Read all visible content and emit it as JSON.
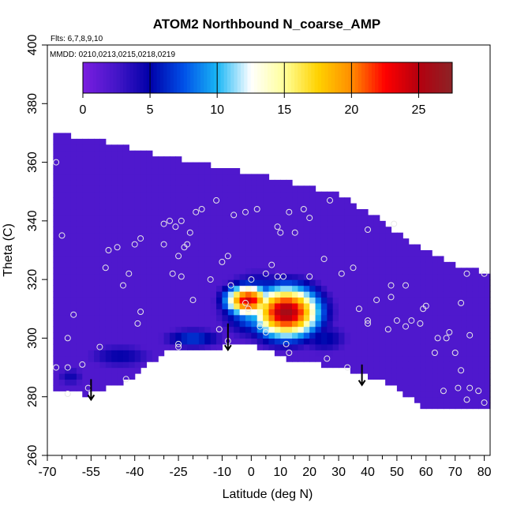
{
  "chart_data": {
    "type": "heatmap",
    "title": "ATOM2 Northbound N_coarse_AMP",
    "annotations": [
      "Flts: 6,7,8,9,10",
      "MMDD: 0210,0213,0215,0218,0219"
    ],
    "xlabel": "Latitude (deg N)",
    "ylabel": "Theta (C)",
    "xlim": [
      -70,
      82
    ],
    "ylim": [
      260,
      400
    ],
    "x_ticks": [
      "-70",
      "-55",
      "-40",
      "-25",
      "-10",
      "0",
      "10",
      "20",
      "30",
      "40",
      "50",
      "60",
      "70",
      "80"
    ],
    "x_tick_values": [
      -70,
      -55,
      -40,
      -25,
      -10,
      0,
      10,
      20,
      30,
      40,
      50,
      60,
      70,
      80
    ],
    "x_minor_ticks": [
      -65,
      -60,
      -50,
      -45,
      -35,
      -30,
      -20,
      -15,
      -5,
      5,
      15,
      25,
      35,
      45,
      55,
      65,
      75
    ],
    "y_ticks": [
      "260",
      "280",
      "300",
      "320",
      "340",
      "360",
      "380",
      "400"
    ],
    "y_tick_values": [
      260,
      280,
      300,
      320,
      340,
      360,
      380,
      400
    ],
    "colorbar": {
      "range": [
        0,
        27.5
      ],
      "ticks": [
        "0",
        "5",
        "10",
        "15",
        "20",
        "25"
      ],
      "tick_values": [
        0,
        5,
        10,
        15,
        20,
        25
      ],
      "colors": [
        "#7b1ee0",
        "#4416c8",
        "#0000a8",
        "#0050e8",
        "#19b6f5",
        "#ffffff",
        "#ffff9a",
        "#ffd200",
        "#ff8c00",
        "#ff0000",
        "#b4000f",
        "#8c2326"
      ]
    },
    "coverage": {
      "lower_boundary": [
        [
          -68,
          282
        ],
        [
          -57,
          281
        ],
        [
          -42,
          286
        ],
        [
          -30,
          295
        ],
        [
          -10,
          297
        ],
        [
          0,
          298
        ],
        [
          12,
          293
        ],
        [
          25,
          291
        ],
        [
          38,
          288
        ],
        [
          48,
          284
        ],
        [
          58,
          277
        ],
        [
          80,
          277
        ]
      ],
      "upper_boundary": [
        [
          -68,
          370
        ],
        [
          -55,
          368
        ],
        [
          -30,
          362
        ],
        [
          -10,
          358
        ],
        [
          10,
          354
        ],
        [
          30,
          349
        ],
        [
          45,
          340
        ],
        [
          55,
          332
        ],
        [
          70,
          325
        ],
        [
          81,
          322
        ]
      ],
      "background_value": 2
    },
    "features": [
      {
        "type": "blob",
        "x": 12,
        "y": 309,
        "rx": 13,
        "ry": 10,
        "peak": 26
      },
      {
        "type": "blob",
        "x": -1,
        "y": 313,
        "rx": 9,
        "ry": 6,
        "peak": 24
      },
      {
        "type": "blob",
        "x": 3,
        "y": 311,
        "rx": 14,
        "ry": 11,
        "peak": 12
      },
      {
        "type": "blob",
        "x": -20,
        "y": 300,
        "rx": 12,
        "ry": 4,
        "peak": 7
      },
      {
        "type": "blob",
        "x": 25,
        "y": 300,
        "rx": 10,
        "ry": 6,
        "peak": 5.5
      },
      {
        "type": "blob",
        "x": -45,
        "y": 294,
        "rx": 14,
        "ry": 5,
        "peak": 5
      },
      {
        "type": "blob",
        "x": -62,
        "y": 287,
        "rx": 6,
        "ry": 4,
        "peak": 4.5
      }
    ],
    "sample_points": [
      [
        -67,
        360
      ],
      [
        -65,
        335
      ],
      [
        -61,
        308
      ],
      [
        -63,
        300
      ],
      [
        -67,
        290
      ],
      [
        -63,
        290
      ],
      [
        -58,
        291
      ],
      [
        -56,
        283
      ],
      [
        -63,
        281
      ],
      [
        -52,
        297
      ],
      [
        -50,
        324
      ],
      [
        -49,
        330
      ],
      [
        -46,
        331
      ],
      [
        -44,
        318
      ],
      [
        -42,
        322
      ],
      [
        -40,
        332
      ],
      [
        -38,
        334
      ],
      [
        -38,
        309
      ],
      [
        -39,
        305
      ],
      [
        -43,
        286
      ],
      [
        -30,
        339
      ],
      [
        -28,
        340
      ],
      [
        -26,
        338
      ],
      [
        -24,
        340
      ],
      [
        -25,
        328
      ],
      [
        -24,
        321
      ],
      [
        -22,
        332
      ],
      [
        -23,
        331
      ],
      [
        -21,
        336
      ],
      [
        -19,
        343
      ],
      [
        -17,
        344
      ],
      [
        -20,
        313
      ],
      [
        -27,
        322
      ],
      [
        -25,
        298
      ],
      [
        -25,
        297
      ],
      [
        -12,
        347
      ],
      [
        -10,
        326
      ],
      [
        -8,
        328
      ],
      [
        -6,
        342
      ],
      [
        -2,
        343
      ],
      [
        2,
        344
      ],
      [
        0,
        320
      ],
      [
        5,
        322
      ],
      [
        9,
        321
      ],
      [
        11,
        321
      ],
      [
        7,
        325
      ],
      [
        9,
        338
      ],
      [
        13,
        343
      ],
      [
        10,
        336
      ],
      [
        15,
        336
      ],
      [
        18,
        344
      ],
      [
        20,
        341
      ],
      [
        -11,
        303
      ],
      [
        -7,
        318
      ],
      [
        -2,
        312
      ],
      [
        5,
        302
      ],
      [
        3,
        304
      ],
      [
        -1,
        310
      ],
      [
        12,
        298
      ],
      [
        13,
        295
      ],
      [
        20,
        321
      ],
      [
        25,
        327
      ],
      [
        27,
        347
      ],
      [
        26,
        293
      ],
      [
        31,
        322
      ],
      [
        35,
        324
      ],
      [
        37,
        310
      ],
      [
        40,
        337
      ],
      [
        43,
        313
      ],
      [
        40,
        305
      ],
      [
        40,
        306
      ],
      [
        49,
        339
      ],
      [
        48,
        318
      ],
      [
        48,
        314
      ],
      [
        50,
        306
      ],
      [
        53,
        304
      ],
      [
        55,
        306
      ],
      [
        53,
        318
      ],
      [
        58,
        305
      ],
      [
        59,
        310
      ],
      [
        60,
        311
      ],
      [
        63,
        295
      ],
      [
        64,
        300
      ],
      [
        68,
        302
      ],
      [
        72,
        312
      ],
      [
        74,
        322
      ],
      [
        75,
        301
      ],
      [
        80,
        322
      ],
      [
        70,
        295
      ],
      [
        72,
        289
      ],
      [
        71,
        283
      ],
      [
        74,
        279
      ],
      [
        75,
        283
      ],
      [
        78,
        282
      ],
      [
        80,
        278
      ],
      [
        67,
        300
      ],
      [
        66,
        282
      ],
      [
        47,
        303
      ],
      [
        33,
        290
      ],
      [
        -8,
        299
      ],
      [
        -14,
        320
      ],
      [
        -30,
        332
      ]
    ],
    "arrows": [
      {
        "x": -55,
        "y_from": 286,
        "y_to": 279
      },
      {
        "x": -8,
        "y_from": 305,
        "y_to": 296
      },
      {
        "x": 38,
        "y_from": 291,
        "y_to": 284
      }
    ]
  }
}
